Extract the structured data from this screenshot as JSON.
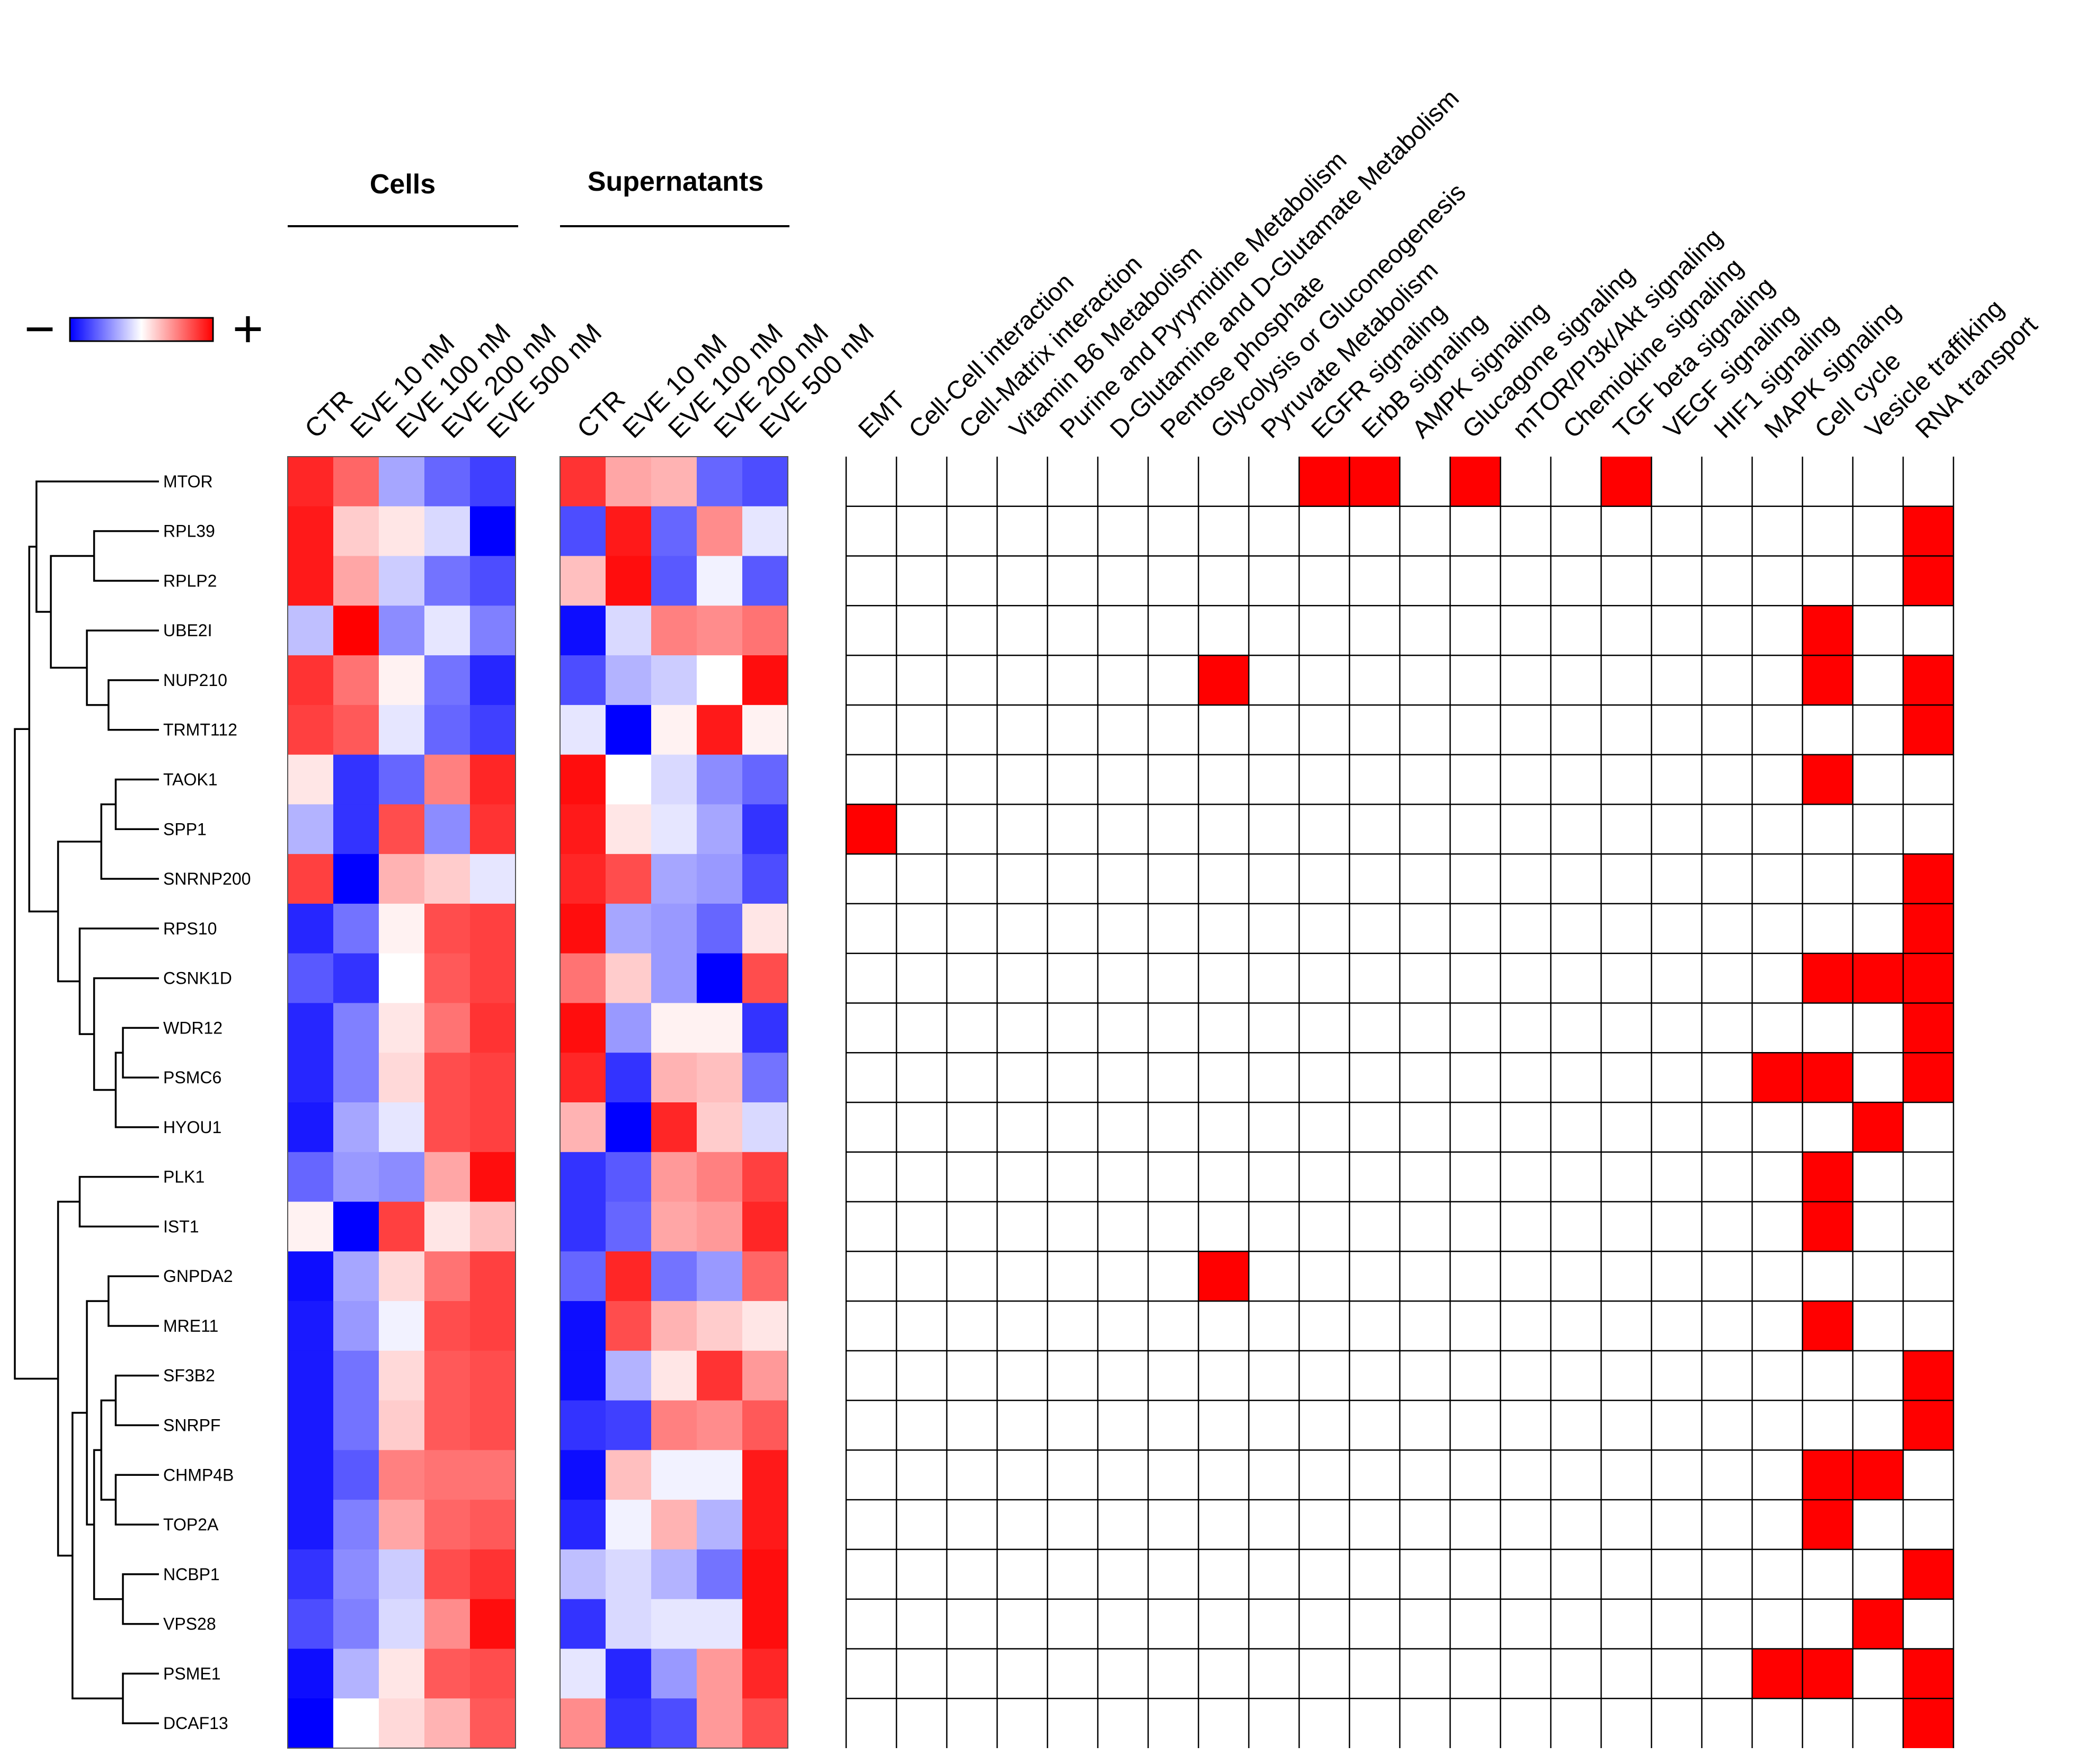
{
  "chart_data": {
    "type": "heatmap",
    "title": "",
    "legend": {
      "minus_label": "−",
      "plus_label": "+",
      "gradient_colors": [
        "#0000ff",
        "#ffffff",
        "#ff0000"
      ]
    },
    "genes": [
      "MTOR",
      "RPL39",
      "RPLP2",
      "UBE2I",
      "NUP210",
      "TRMT112",
      "TAOK1",
      "SPP1",
      "SNRNP200",
      "RPS10",
      "CSNK1D",
      "WDR12",
      "PSMC6",
      "HYOU1",
      "PLK1",
      "IST1",
      "GNPDA2",
      "MRE11",
      "SF3B2",
      "SNRPF",
      "CHMP4B",
      "TOP2A",
      "NCBP1",
      "VPS28",
      "PSME1",
      "DCAF13"
    ],
    "groups": [
      {
        "name": "Cells",
        "columns": [
          "CTR",
          "EVE 10 nM",
          "EVE 100 nM",
          "EVE 200 nM",
          "EVE 500 nM"
        ],
        "values": [
          [
            0.85,
            0.6,
            -0.35,
            -0.6,
            -0.75
          ],
          [
            0.9,
            0.2,
            0.1,
            -0.15,
            -1.0
          ],
          [
            0.9,
            0.35,
            -0.2,
            -0.55,
            -0.7
          ],
          [
            -0.25,
            1.0,
            -0.45,
            -0.1,
            -0.5
          ],
          [
            0.8,
            0.55,
            0.05,
            -0.55,
            -0.85
          ],
          [
            0.75,
            0.65,
            -0.1,
            -0.6,
            -0.75
          ],
          [
            0.1,
            -0.8,
            -0.6,
            0.5,
            0.85
          ],
          [
            -0.3,
            -0.8,
            0.7,
            -0.45,
            0.8
          ],
          [
            0.75,
            -1.0,
            0.3,
            0.2,
            -0.1
          ],
          [
            -0.85,
            -0.55,
            0.05,
            0.7,
            0.75
          ],
          [
            -0.65,
            -0.8,
            0.0,
            0.65,
            0.75
          ],
          [
            -0.85,
            -0.5,
            0.1,
            0.55,
            0.8
          ],
          [
            -0.85,
            -0.5,
            0.15,
            0.7,
            0.75
          ],
          [
            -0.9,
            -0.35,
            -0.1,
            0.7,
            0.75
          ],
          [
            -0.6,
            -0.4,
            -0.45,
            0.35,
            0.95
          ],
          [
            0.05,
            -1.0,
            0.75,
            0.1,
            0.25
          ],
          [
            -0.95,
            -0.35,
            0.15,
            0.55,
            0.75
          ],
          [
            -0.9,
            -0.4,
            -0.05,
            0.7,
            0.75
          ],
          [
            -0.9,
            -0.55,
            0.15,
            0.65,
            0.7
          ],
          [
            -0.9,
            -0.55,
            0.2,
            0.65,
            0.7
          ],
          [
            -0.9,
            -0.65,
            0.5,
            0.55,
            0.55
          ],
          [
            -0.9,
            -0.5,
            0.35,
            0.6,
            0.65
          ],
          [
            -0.8,
            -0.45,
            -0.2,
            0.7,
            0.8
          ],
          [
            -0.7,
            -0.5,
            -0.15,
            0.45,
            0.95
          ],
          [
            -0.95,
            -0.3,
            0.1,
            0.65,
            0.7
          ],
          [
            -1.0,
            0.0,
            0.15,
            0.3,
            0.65
          ]
        ]
      },
      {
        "name": "Supernatants",
        "columns": [
          "CTR",
          "EVE 10 nM",
          "EVE 100 nM",
          "EVE 200 nM",
          "EVE 500 nM"
        ],
        "values": [
          [
            0.8,
            0.35,
            0.3,
            -0.6,
            -0.7
          ],
          [
            -0.7,
            0.9,
            -0.6,
            0.45,
            -0.1
          ],
          [
            0.25,
            0.95,
            -0.65,
            -0.05,
            -0.65
          ],
          [
            -0.95,
            -0.15,
            0.5,
            0.45,
            0.55
          ],
          [
            -0.7,
            -0.3,
            -0.2,
            0.0,
            0.95
          ],
          [
            -0.1,
            -1.0,
            0.05,
            0.9,
            0.05
          ],
          [
            0.95,
            0.0,
            -0.15,
            -0.45,
            -0.6
          ],
          [
            0.9,
            0.1,
            -0.1,
            -0.35,
            -0.8
          ],
          [
            0.85,
            0.7,
            -0.35,
            -0.4,
            -0.7
          ],
          [
            0.95,
            -0.35,
            -0.4,
            -0.6,
            0.1
          ],
          [
            0.55,
            0.2,
            -0.4,
            -1.0,
            0.7
          ],
          [
            0.95,
            -0.4,
            0.05,
            0.05,
            -0.8
          ],
          [
            0.85,
            -0.8,
            0.3,
            0.25,
            -0.55
          ],
          [
            0.3,
            -1.0,
            0.85,
            0.2,
            -0.15
          ],
          [
            -0.8,
            -0.65,
            0.4,
            0.5,
            0.75
          ],
          [
            -0.8,
            -0.6,
            0.35,
            0.4,
            0.85
          ],
          [
            -0.6,
            0.85,
            -0.55,
            -0.4,
            0.6
          ],
          [
            -0.95,
            0.7,
            0.3,
            0.2,
            0.1
          ],
          [
            -0.95,
            -0.3,
            0.1,
            0.8,
            0.4
          ],
          [
            -0.8,
            -0.75,
            0.5,
            0.45,
            0.65
          ],
          [
            -0.95,
            0.25,
            -0.05,
            -0.05,
            0.9
          ],
          [
            -0.85,
            -0.05,
            0.3,
            -0.3,
            0.9
          ],
          [
            -0.25,
            -0.15,
            -0.3,
            -0.55,
            0.95
          ],
          [
            -0.8,
            -0.15,
            -0.1,
            -0.1,
            0.95
          ],
          [
            -0.1,
            -0.85,
            -0.4,
            0.4,
            0.85
          ],
          [
            0.45,
            -0.8,
            -0.7,
            0.4,
            0.7
          ]
        ]
      }
    ],
    "pathways": {
      "columns": [
        "EMT",
        "Cell-Cell interaction",
        "Cell-Matrix interaction",
        "Vitamin B6 Metabolism",
        "Purine and Pyrymidine Metabolism",
        "D-Glutamine and D-Glutamate Metabolism",
        "Pentose phosphate",
        "Glycolysis or Gluconeogenesis",
        "Pyruvate Metabolism",
        "EGFR signaling",
        "ErbB signaling",
        "AMPK signaling",
        "Glucagone signaling",
        "mTOR/PI3k/Akt signaling",
        "Chemiokine signaling",
        "TGF beta signaling",
        "VEGF signaling",
        "HIF1 signaling",
        "MAPK signaling",
        "Cell cycle",
        "Vesicle traffiking",
        "RNA transport"
      ],
      "membership": [
        [
          9,
          10,
          12,
          15
        ],
        [
          21
        ],
        [
          21
        ],
        [
          19
        ],
        [
          7,
          19,
          21
        ],
        [
          21
        ],
        [
          19
        ],
        [
          0
        ],
        [
          21
        ],
        [
          21
        ],
        [
          19,
          20,
          21
        ],
        [
          21
        ],
        [
          18,
          19,
          21
        ],
        [
          20
        ],
        [
          19
        ],
        [
          19
        ],
        [
          7
        ],
        [
          19
        ],
        [
          21
        ],
        [
          21
        ],
        [
          19,
          20
        ],
        [
          19
        ],
        [
          21
        ],
        [
          20
        ],
        [
          18,
          19,
          21
        ],
        [
          21
        ]
      ],
      "on_color": "#ff0000",
      "off_color": "#ffffff"
    },
    "dendrogram": {
      "merges": [
        [
          1,
          2,
          0.55
        ],
        [
          4,
          5,
          0.65
        ],
        [
          3,
          27,
          0.5
        ],
        [
          28,
          26,
          0.25
        ],
        [
          0,
          29,
          0.15
        ],
        [
          6,
          7,
          0.7
        ],
        [
          31,
          8,
          0.6
        ],
        [
          11,
          12,
          0.75
        ],
        [
          33,
          13,
          0.7
        ],
        [
          10,
          34,
          0.55
        ],
        [
          9,
          35,
          0.45
        ],
        [
          32,
          36,
          0.3
        ],
        [
          30,
          37,
          0.1
        ],
        [
          14,
          15,
          0.45
        ],
        [
          16,
          17,
          0.65
        ],
        [
          18,
          19,
          0.7
        ],
        [
          20,
          21,
          0.7
        ],
        [
          41,
          42,
          0.6
        ],
        [
          22,
          23,
          0.75
        ],
        [
          43,
          44,
          0.55
        ],
        [
          40,
          45,
          0.5
        ],
        [
          24,
          25,
          0.75
        ],
        [
          46,
          47,
          0.4
        ],
        [
          39,
          48,
          0.3
        ],
        [
          38,
          49,
          0.0
        ]
      ]
    }
  }
}
